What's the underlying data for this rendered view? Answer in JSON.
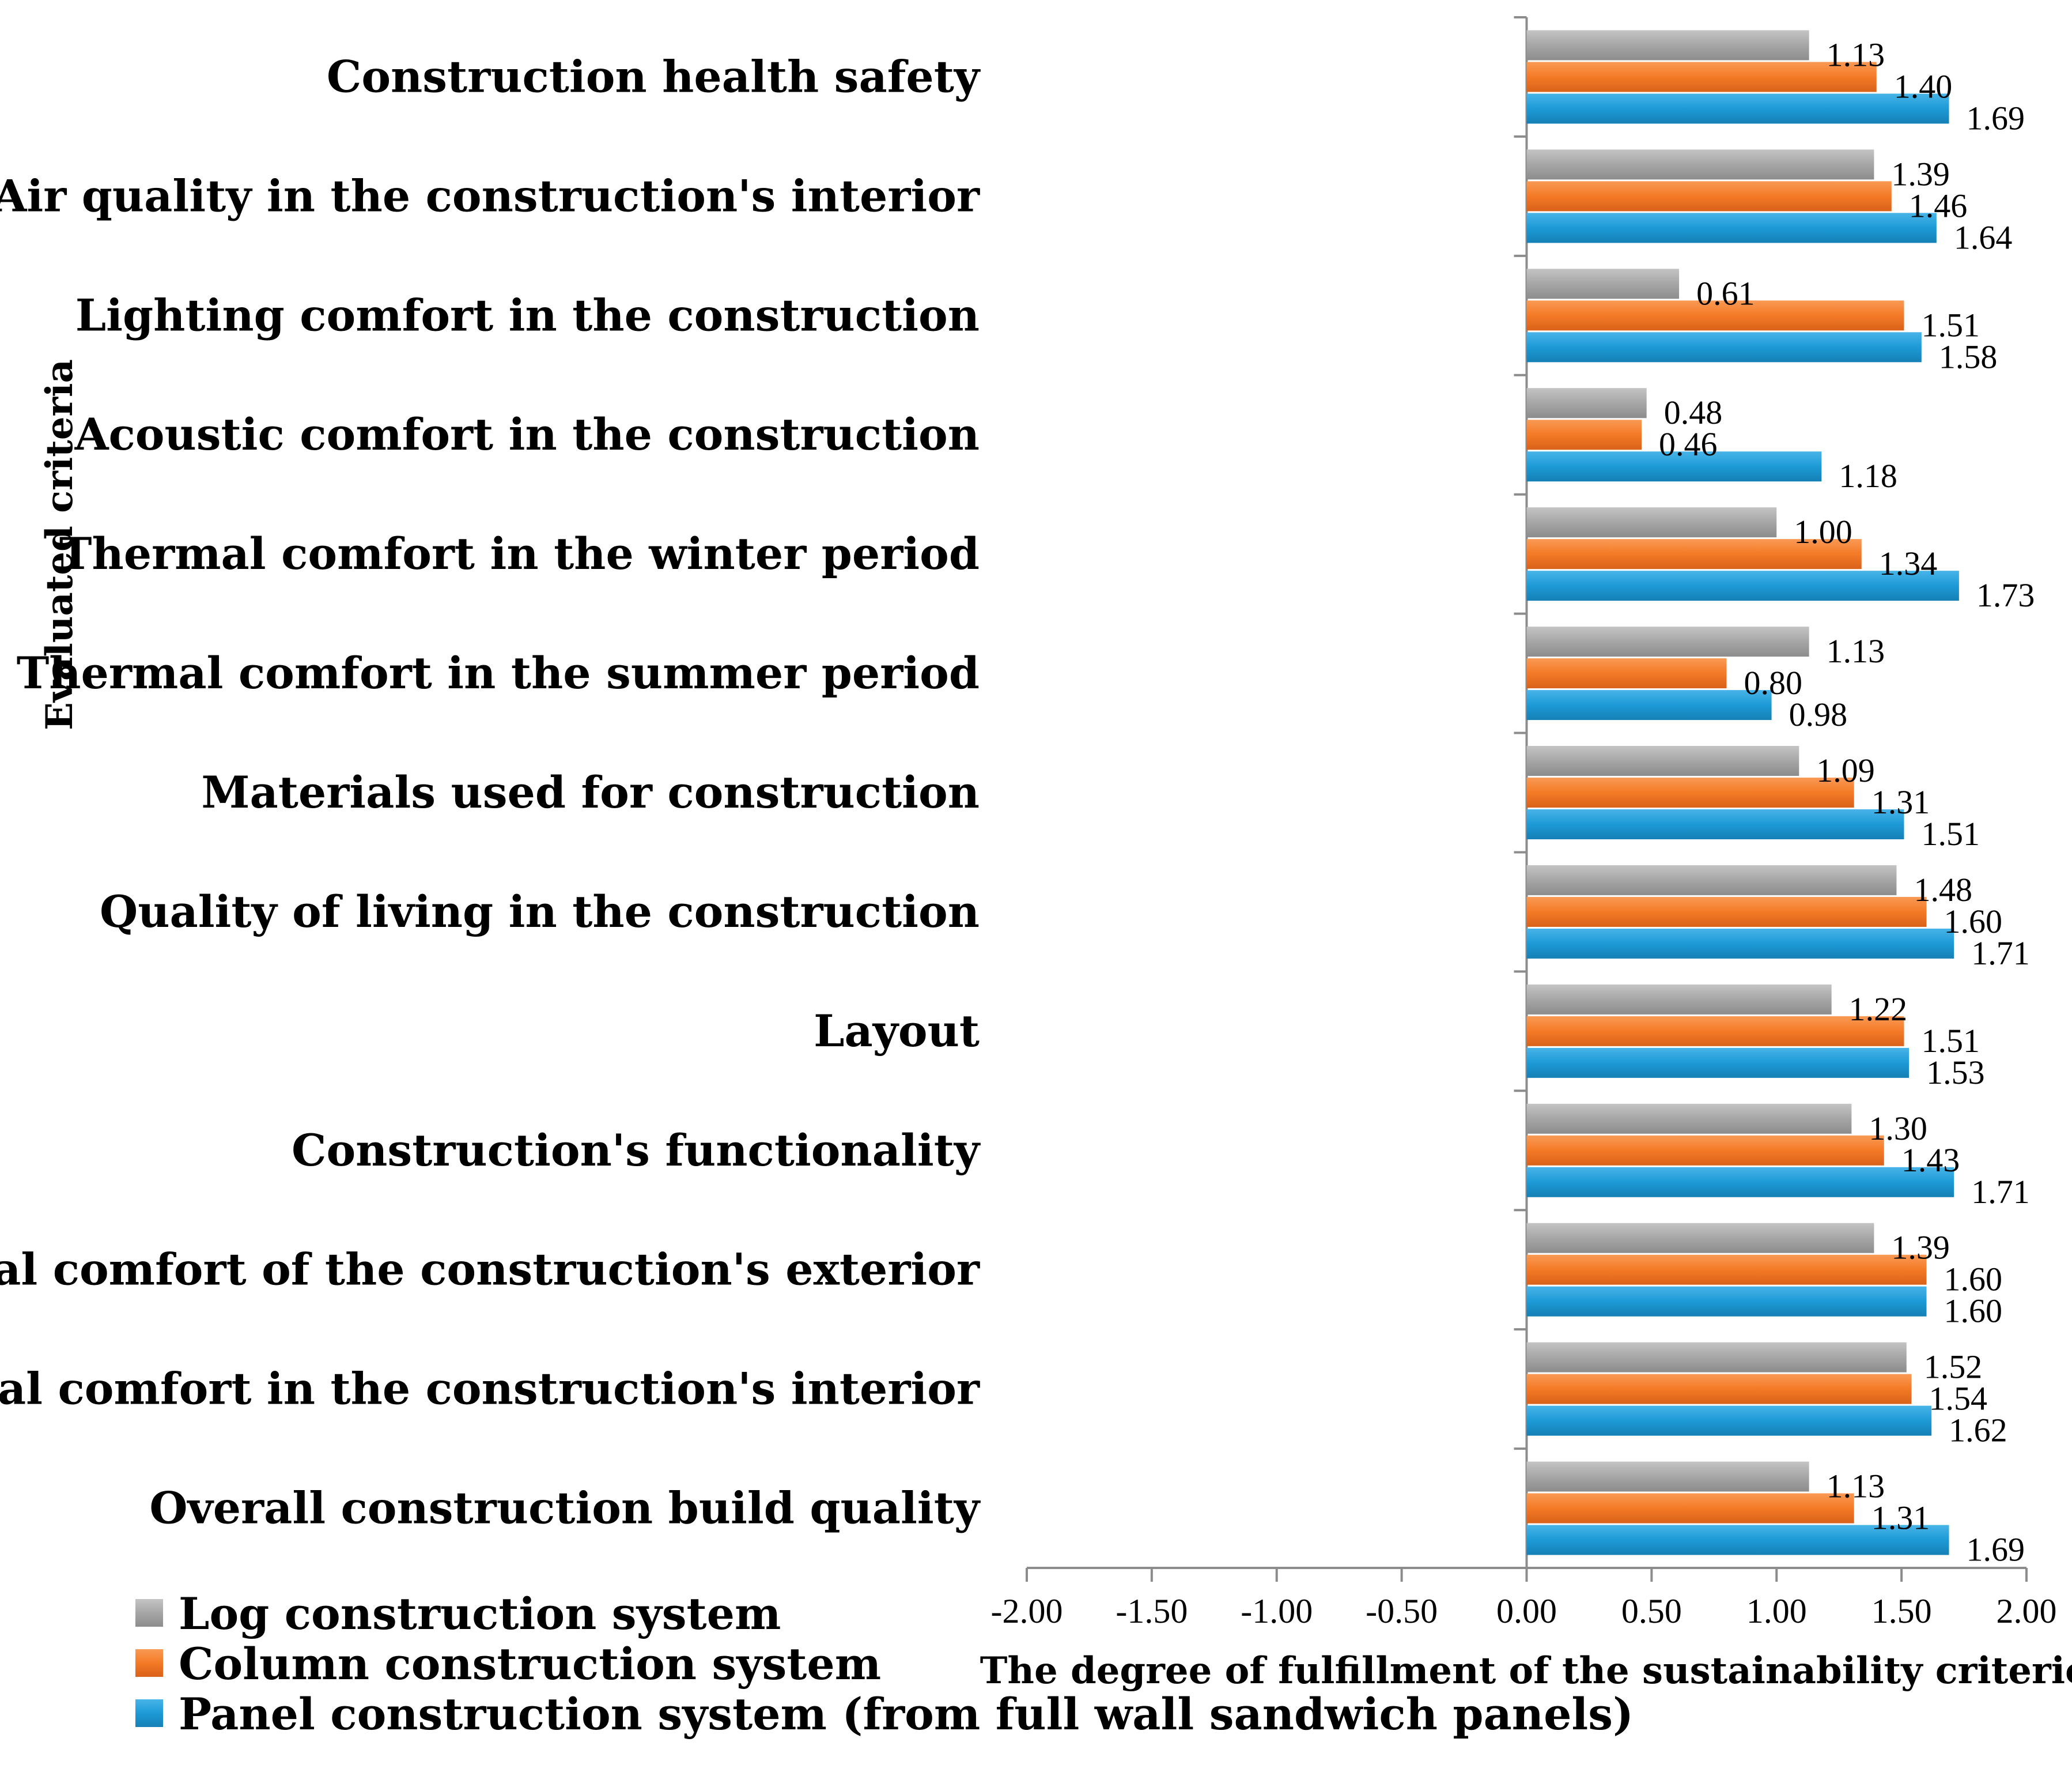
{
  "chart_data": {
    "type": "bar",
    "orientation": "horizontal",
    "title": "",
    "ylabel": "Evaluated criteria",
    "xlabel": "The degree of fulfillment of the sustainability criterion",
    "xlim": [
      -2.0,
      2.0
    ],
    "xticks": [
      "-2.00",
      "-1.50",
      "-1.00",
      "-0.50",
      "0.00",
      "0.50",
      "1.00",
      "1.50",
      "2.00"
    ],
    "xtick_values": [
      -2.0,
      -1.5,
      -1.0,
      -0.5,
      0.0,
      0.5,
      1.0,
      1.5,
      2.0
    ],
    "grid": false,
    "legend_position": "bottom-left",
    "categories": [
      "Construction health safety",
      "Air quality in the construction's interior",
      "Lighting comfort in the construction",
      "Acoustic comfort in the construction",
      "Thermal comfort in the winter period",
      "Thermal comfort in the summer period",
      "Materials used for construction",
      "Quality of living in the construction",
      "Layout",
      "Construction's functionality",
      "Visual comfort of the construction's exterior",
      "Visual comfort in the construction's interior",
      "Overall construction build quality"
    ],
    "series": [
      {
        "name": "Log construction system",
        "color": "#a6a6a6",
        "values": [
          1.13,
          1.39,
          0.61,
          0.48,
          1.0,
          1.13,
          1.09,
          1.48,
          1.22,
          1.3,
          1.39,
          1.52,
          1.13
        ],
        "labels": [
          "1.13",
          "1.39",
          "0.61",
          "0.48",
          "1.00",
          "1.13",
          "1.09",
          "1.48",
          "1.22",
          "1.30",
          "1.39",
          "1.52",
          "1.13"
        ]
      },
      {
        "name": "Column construction system",
        "color": "#f47a26",
        "values": [
          1.4,
          1.46,
          1.51,
          0.46,
          1.34,
          0.8,
          1.31,
          1.6,
          1.51,
          1.43,
          1.6,
          1.54,
          1.31
        ],
        "labels": [
          "1.40",
          "1.46",
          "1.51",
          "0.46",
          "1.34",
          "0.80",
          "1.31",
          "1.60",
          "1.51",
          "1.43",
          "1.60",
          "1.54",
          "1.31"
        ]
      },
      {
        "name": "Panel construction system (from full wall sandwich panels)",
        "color": "#1d9ad6",
        "values": [
          1.69,
          1.64,
          1.58,
          1.18,
          1.73,
          0.98,
          1.51,
          1.71,
          1.53,
          1.71,
          1.6,
          1.62,
          1.69
        ],
        "labels": [
          "1.69",
          "1.64",
          "1.58",
          "1.18",
          "1.73",
          "0.98",
          "1.51",
          "1.71",
          "1.53",
          "1.71",
          "1.60",
          "1.62",
          "1.69"
        ]
      }
    ]
  }
}
